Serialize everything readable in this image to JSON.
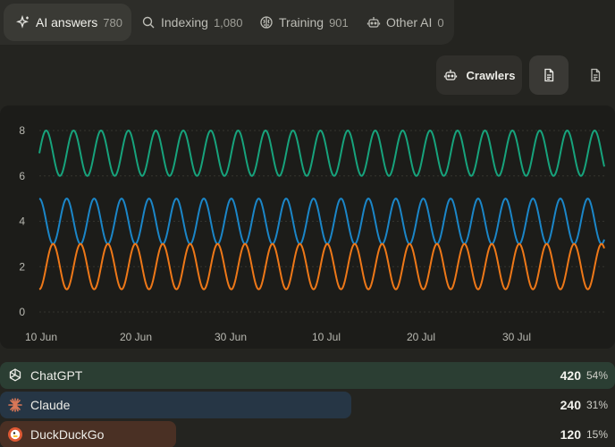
{
  "tabs": [
    {
      "label": "AI answers",
      "count": "780",
      "icon": "sparkles-icon"
    },
    {
      "label": "Indexing",
      "count": "1,080",
      "icon": "search-icon"
    },
    {
      "label": "Training",
      "count": "901",
      "icon": "brain-icon"
    },
    {
      "label": "Other AI",
      "count": "0",
      "icon": "robot-icon"
    }
  ],
  "toolbar": {
    "crawlers_label": "Crawlers"
  },
  "chart_data": {
    "type": "line",
    "x_ticks": [
      "10 Jun",
      "20 Jun",
      "30 Jun",
      "10 Jul",
      "20 Jul",
      "30 Jul"
    ],
    "y_ticks": [
      "0",
      "2",
      "4",
      "6",
      "8"
    ],
    "ylim": [
      0,
      8
    ],
    "series": [
      {
        "color": "#17a37c",
        "min": 6,
        "max": 8,
        "start": 7,
        "cycles": 20.6
      },
      {
        "color": "#1b86c8",
        "min": 3,
        "max": 5,
        "start": 5,
        "cycles": 20.6
      },
      {
        "color": "#ee7818",
        "min": 1,
        "max": 3,
        "start": 1,
        "cycles": 20.6
      }
    ]
  },
  "crawlers": [
    {
      "name": "ChatGPT",
      "value": "420",
      "percent": "54%",
      "fraction": 1.0,
      "color": "#2b3e33",
      "icon": "openai-icon"
    },
    {
      "name": "Claude",
      "value": "240",
      "percent": "31%",
      "fraction": 0.571,
      "color": "#263645",
      "icon": "claude-icon"
    },
    {
      "name": "DuckDuckGo",
      "value": "120",
      "percent": "15%",
      "fraction": 0.286,
      "color": "#4a3024",
      "icon": "duckduckgo-icon"
    }
  ]
}
